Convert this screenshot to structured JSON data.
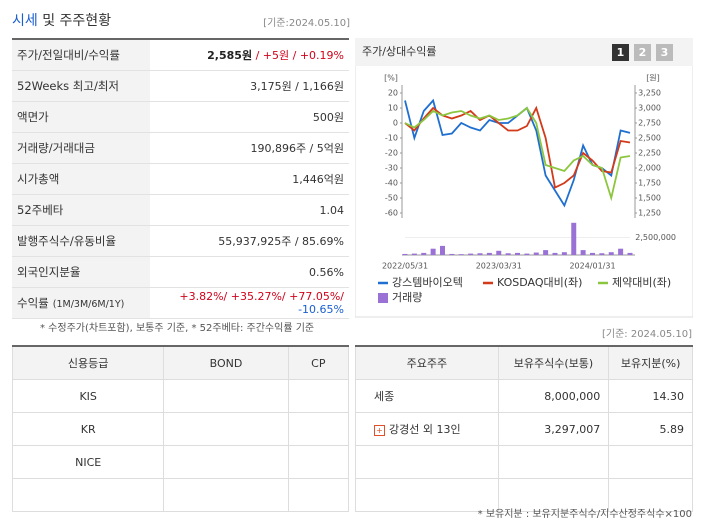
{
  "header": {
    "title_main": "시세",
    "title_rest": "및 주주현황",
    "date": "[기준:2024.05.10]"
  },
  "summary": {
    "rows": [
      {
        "label": "주가/전일대비/수익률",
        "parts": [
          {
            "text": "2,585원",
            "color": "#222"
          },
          {
            "text": " / +5원",
            "color": "#d0021b"
          },
          {
            "text": " / +0.19%",
            "color": "#d0021b"
          }
        ]
      },
      {
        "label": "52Weeks 최고/최저",
        "parts": [
          {
            "text": "3,175원 / 1,166원",
            "color": "#333"
          }
        ]
      },
      {
        "label": "액면가",
        "parts": [
          {
            "text": "500원",
            "color": "#333"
          }
        ]
      },
      {
        "label": "거래량/거래대금",
        "parts": [
          {
            "text": "190,896주 / 5억원",
            "color": "#333"
          }
        ]
      },
      {
        "label": "시가총액",
        "parts": [
          {
            "text": "1,446억원",
            "color": "#333"
          }
        ]
      },
      {
        "label": "52주베타",
        "parts": [
          {
            "text": "1.04",
            "color": "#333"
          }
        ]
      },
      {
        "label": "발행주식수/유동비율",
        "parts": [
          {
            "text": "55,937,925주 / 85.69%",
            "color": "#333"
          }
        ]
      },
      {
        "label": "외국인지분율",
        "parts": [
          {
            "text": "0.56%",
            "color": "#333"
          }
        ]
      },
      {
        "label": "수익률",
        "sublabel": "(1M/3M/6M/1Y)",
        "parts": [
          {
            "text": "+3.82%/",
            "color": "#d0021b"
          },
          {
            "text": " +35.27%/",
            "color": "#d0021b"
          },
          {
            "text": " +77.05%/",
            "color": "#d0021b"
          },
          {
            "text": " -10.65%",
            "color": "#1a5fd0"
          }
        ]
      }
    ],
    "note": "* 수정주가(차트포함), 보통주 기준, * 52주베타: 주간수익률 기준"
  },
  "chart_data": {
    "type": "line",
    "title": "주가/상대수익률",
    "buttons": [
      "1",
      "2",
      "3"
    ],
    "ylabel": "[%]",
    "y2label": "[원]",
    "categories": [
      "2022/05/31",
      null,
      null,
      null,
      null,
      null,
      null,
      null,
      null,
      null,
      "2023/03/31",
      null,
      null,
      null,
      null,
      null,
      null,
      null,
      null,
      null,
      "2024/01/31",
      null,
      null,
      null,
      null
    ],
    "ylim": [
      -60,
      20
    ],
    "yticks": [
      20,
      10,
      0,
      -10,
      -20,
      -30,
      -40,
      -50,
      -60
    ],
    "y2lim": [
      1250,
      3250
    ],
    "y2ticks": [
      {
        "value": 3250,
        "label": "3,250"
      },
      {
        "value": 3000,
        "label": "3,000"
      },
      {
        "value": 2750,
        "label": "2,750"
      },
      {
        "value": 2500,
        "label": "2,500"
      },
      {
        "value": 2250,
        "label": "2,250"
      },
      {
        "value": 2000,
        "label": "2,000"
      },
      {
        "value": 1750,
        "label": "1,750"
      },
      {
        "value": 1500,
        "label": "1,500"
      },
      {
        "value": 1250,
        "label": "1,250"
      }
    ],
    "vlim": [
      0,
      5000000
    ],
    "vticks": [
      {
        "value": 2500000,
        "label": "2,500,000"
      }
    ],
    "series": [
      {
        "name": "강스템바이오텍",
        "color": "#1f6fd1",
        "axis": "y2",
        "values": [
          3125,
          2500,
          2950,
          3125,
          2550,
          2575,
          2750,
          2675,
          2625,
          2800,
          2750,
          2750,
          2875,
          3000,
          2625,
          1875,
          1625,
          1375,
          1800,
          2375,
          2050,
          2000,
          1875,
          2625,
          2585
        ]
      },
      {
        "name": "KOSDAQ대비(좌)",
        "color": "#d23a1a",
        "values": [
          0,
          -5,
          3,
          10,
          5,
          3,
          5,
          8,
          2,
          5,
          0,
          -5,
          -5,
          -2,
          10,
          -10,
          -43,
          -40,
          -35,
          -20,
          -25,
          -32,
          -33,
          -12,
          -13
        ]
      },
      {
        "name": "제약대비(좌)",
        "color": "#8cc63f",
        "values": [
          0,
          -3,
          2,
          8,
          5,
          7,
          8,
          5,
          3,
          5,
          2,
          3,
          5,
          10,
          0,
          -28,
          -30,
          -32,
          -25,
          -22,
          -28,
          -30,
          -50,
          -23,
          -22
        ]
      },
      {
        "name": "거래량",
        "color": "#9a72d6",
        "axis": "v",
        "values": [
          150000,
          200000,
          300000,
          900000,
          1300000,
          150000,
          120000,
          200000,
          250000,
          300000,
          600000,
          250000,
          300000,
          200000,
          350000,
          700000,
          300000,
          400000,
          4600000,
          700000,
          300000,
          250000,
          400000,
          900000,
          300000
        ]
      }
    ]
  },
  "credit": {
    "headers": [
      "신용등급",
      "BOND",
      "CP"
    ],
    "rows": [
      [
        "KIS"
      ],
      [
        "KR"
      ],
      [
        "NICE"
      ]
    ]
  },
  "holders": {
    "date": "[기준: 2024.05.10]",
    "headers": [
      "주요주주",
      "보유주식수(보통)",
      "보유지분(%)"
    ],
    "rows": [
      [
        "세종",
        "8,000,000",
        "14.30"
      ],
      [
        "강경선 외 13인",
        "3,297,007",
        "5.89"
      ]
    ],
    "note": "* 보유지분 : 보유지분주식수/지수산정주식수×100"
  }
}
